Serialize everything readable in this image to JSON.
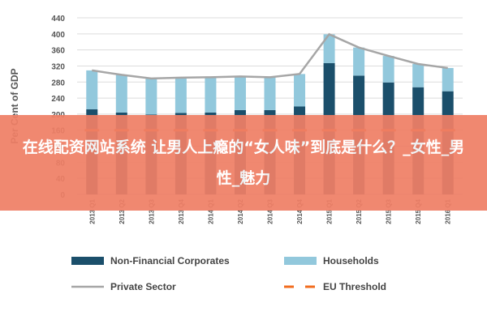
{
  "colors": {
    "nfc": "#1b4f6b",
    "households": "#92c8dc",
    "private_sector": "#a6a6a6",
    "eu_threshold": "#f26b1d",
    "overlay": "#ef7f66",
    "axis_text": "#555555"
  },
  "overlay": {
    "text": "在线配资网站系统 让男人上瘾的“女人味”到底是什么？_女性_男性_魅力"
  },
  "chart_data": {
    "type": "bar",
    "stacked": true,
    "categories": [
      "2013 Q1",
      "2013 Q2",
      "2013 Q3",
      "2013 Q4",
      "2014 Q1",
      "2014 Q2",
      "2014 Q3",
      "2014 Q4",
      "2015 Q1",
      "2015 Q2",
      "2015 Q3",
      "2015 Q4",
      "2016 Q1"
    ],
    "ylabel": "Per Cent of GDP",
    "ylim": [
      0,
      440
    ],
    "yticks": [
      0,
      40,
      80,
      120,
      160,
      200,
      240,
      280,
      320,
      360,
      400,
      440
    ],
    "grid": true,
    "legend_position": "bottom",
    "series": [
      {
        "name": "Non-Financial Corporates",
        "type": "bar",
        "color": "#1b4f6b",
        "values": [
          212,
          204,
          199,
          203,
          204,
          210,
          210,
          219,
          327,
          296,
          279,
          267,
          257
        ]
      },
      {
        "name": "Households",
        "type": "bar",
        "color": "#92c8dc",
        "values": [
          97,
          94,
          90,
          88,
          88,
          84,
          82,
          81,
          72,
          70,
          66,
          58,
          58
        ]
      },
      {
        "name": "Private Sector",
        "type": "line",
        "color": "#a6a6a6",
        "values": [
          309,
          298,
          289,
          291,
          292,
          294,
          292,
          300,
          399,
          366,
          345,
          325,
          315
        ]
      },
      {
        "name": "EU Threshold",
        "type": "line",
        "dashed": true,
        "color": "#f26b1d",
        "values": [
          160,
          160,
          160,
          160,
          160,
          160,
          160,
          160,
          160,
          160,
          160,
          160,
          160
        ]
      }
    ]
  }
}
